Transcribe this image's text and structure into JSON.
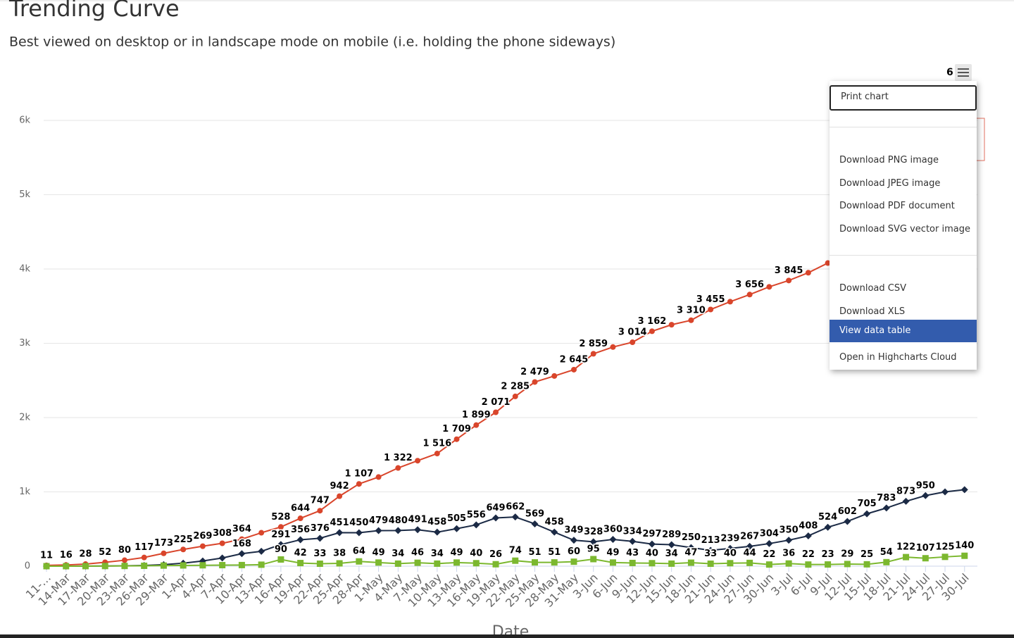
{
  "chart_data": {
    "type": "line",
    "title": "Trending Curve",
    "subtitle": "Best viewed on desktop or in landscape mode on mobile (i.e. holding the phone sideways)",
    "x_label": "Date",
    "categories": [
      "11-…",
      "14-Mar",
      "17-Mar",
      "20-Mar",
      "23-Mar",
      "26-Mar",
      "29-Mar",
      "1-Apr",
      "4-Apr",
      "7-Apr",
      "10-Apr",
      "13-Apr",
      "16-Apr",
      "19-Apr",
      "22-Apr",
      "25-Apr",
      "28-Apr",
      "1-May",
      "4-May",
      "7-May",
      "10-May",
      "13-May",
      "16-May",
      "19-May",
      "22-May",
      "25-May",
      "28-May",
      "31-May",
      "3-Jun",
      "6-Jun",
      "9-Jun",
      "12-Jun",
      "15-Jun",
      "18-Jun",
      "21-Jun",
      "24-Jun",
      "27-Jun",
      "30-Jun",
      "3-Jul",
      "6-Jul",
      "9-Jul",
      "12-Jul",
      "15-Jul",
      "18-Jul",
      "21-Jul",
      "24-Jul",
      "27-Jul",
      "30-Jul"
    ],
    "ylim": [
      0,
      6000
    ],
    "yticks": [
      {
        "value": 0,
        "label": "0"
      },
      {
        "value": 1000,
        "label": "1k"
      },
      {
        "value": 2000,
        "label": "2k"
      },
      {
        "value": 3000,
        "label": "3k"
      },
      {
        "value": 4000,
        "label": "4k"
      },
      {
        "value": 5000,
        "label": "5k"
      },
      {
        "value": 6000,
        "label": "6k"
      }
    ],
    "grid": true,
    "series": [
      {
        "color": "#d9452b",
        "marker": "circle",
        "values": [
          11,
          16,
          28,
          52,
          80,
          117,
          173,
          225,
          269,
          308,
          364,
          450,
          528,
          644,
          747,
          942,
          1107,
          1200,
          1322,
          1420,
          1516,
          1709,
          1899,
          2071,
          2285,
          2479,
          2560,
          2645,
          2859,
          2950,
          3014,
          3162,
          3250,
          3310,
          3455,
          3560,
          3656,
          3760,
          3845,
          3950,
          4080,
          null,
          null,
          null,
          null,
          null,
          null,
          null
        ],
        "value_labels": [
          "11",
          "16",
          "28",
          "52",
          "80",
          "117",
          "173",
          "225",
          "269",
          "308",
          "364",
          null,
          "528",
          "644",
          "747",
          "942",
          "1 107",
          null,
          "1 322",
          null,
          "1 516",
          "1 709",
          "1 899",
          "2 071",
          "2 285",
          "2 479",
          null,
          "2 645",
          "2 859",
          null,
          "3 014",
          "3 162",
          null,
          "3 310",
          "3 455",
          null,
          "3 656",
          null,
          "3 845",
          null,
          null,
          null,
          null,
          null,
          null,
          null,
          null,
          null
        ]
      },
      {
        "color": "#1b2a45",
        "marker": "diamond",
        "values": [
          0,
          0,
          1,
          2,
          5,
          10,
          20,
          40,
          70,
          110,
          168,
          200,
          291,
          356,
          376,
          451,
          450,
          479,
          480,
          491,
          458,
          505,
          556,
          649,
          662,
          569,
          458,
          349,
          328,
          360,
          334,
          297,
          289,
          250,
          213,
          239,
          267,
          304,
          350,
          408,
          524,
          602,
          705,
          783,
          873,
          950,
          1000,
          1030
        ],
        "value_labels": [
          null,
          null,
          null,
          null,
          null,
          null,
          null,
          null,
          null,
          null,
          "168",
          null,
          "291",
          "356",
          "376",
          "451",
          "450",
          "479",
          "480",
          "491",
          "458",
          "505",
          "556",
          "649",
          "662",
          "569",
          "458",
          "349",
          "328",
          "360",
          "334",
          "297",
          "289",
          "250",
          "213",
          "239",
          "267",
          "304",
          "350",
          "408",
          "524",
          "602",
          "705",
          "783",
          "873",
          "950",
          null,
          null
        ]
      },
      {
        "color": "#7cb82f",
        "marker": "square",
        "values": [
          0,
          0,
          1,
          2,
          3,
          5,
          8,
          10,
          12,
          14,
          15,
          20,
          90,
          42,
          33,
          38,
          64,
          49,
          34,
          46,
          34,
          49,
          40,
          26,
          74,
          51,
          51,
          60,
          95,
          49,
          43,
          40,
          34,
          47,
          33,
          40,
          44,
          22,
          36,
          22,
          23,
          29,
          25,
          54,
          122,
          107,
          125,
          140
        ],
        "value_labels": [
          null,
          null,
          null,
          null,
          null,
          null,
          null,
          null,
          null,
          null,
          null,
          null,
          "90",
          "42",
          "33",
          "38",
          "64",
          "49",
          "34",
          "46",
          "34",
          "49",
          "40",
          "26",
          "74",
          "51",
          "51",
          "60",
          "95",
          "49",
          "43",
          "40",
          "34",
          "47",
          "33",
          "40",
          "44",
          "22",
          "36",
          "22",
          "23",
          "29",
          "25",
          "54",
          "122",
          "107",
          "125",
          "140"
        ]
      }
    ]
  },
  "menu": {
    "badge": "6",
    "items": [
      "Print chart",
      "Download PNG image",
      "Download JPEG image",
      "Download PDF document",
      "Download SVG vector image",
      "Download CSV",
      "Download XLS",
      "View data table",
      "Open in Highcharts Cloud"
    ]
  }
}
